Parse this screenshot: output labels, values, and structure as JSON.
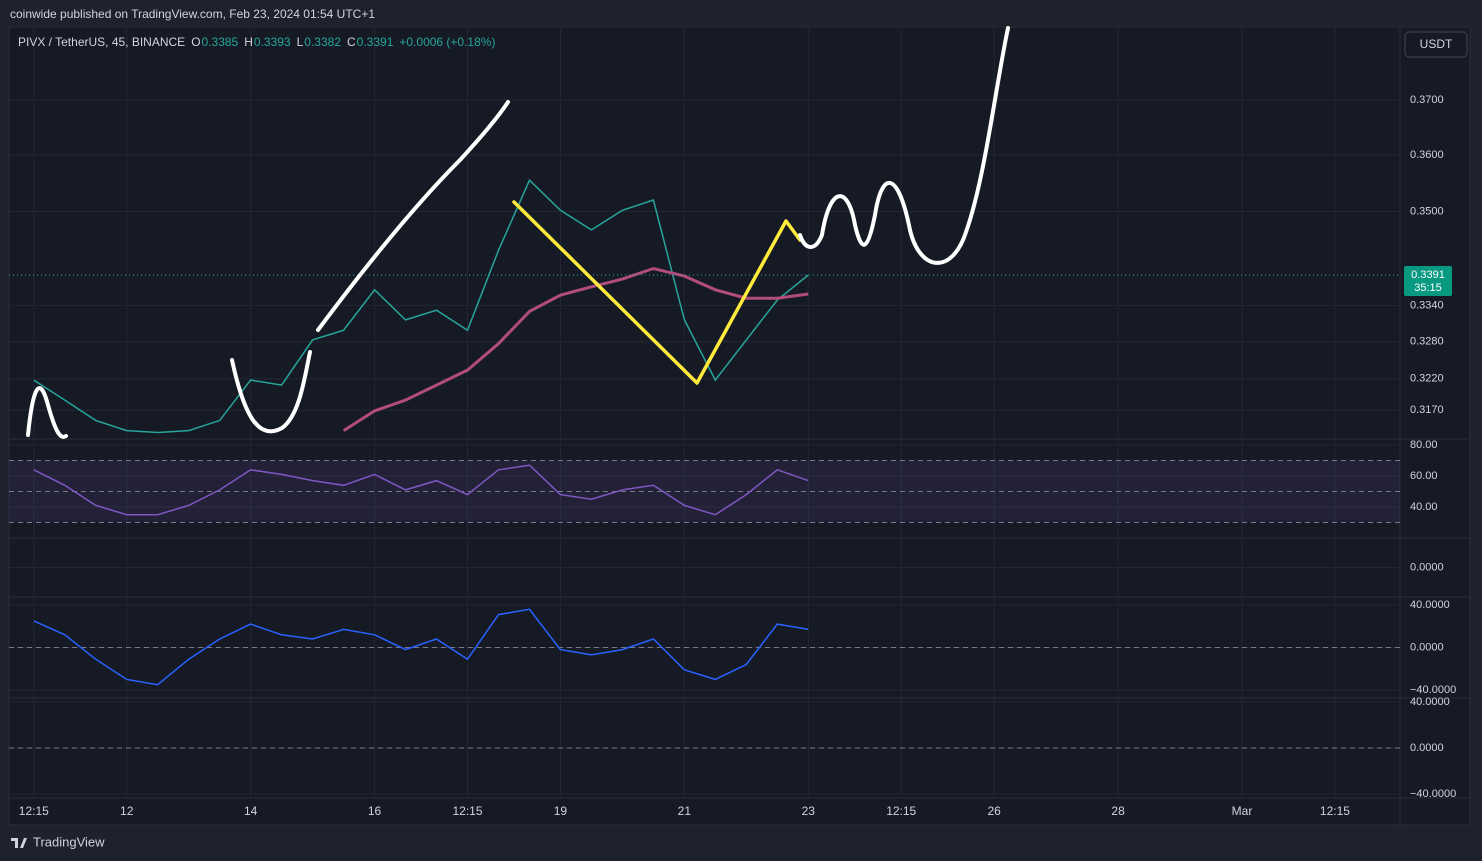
{
  "header": "coinwide published on TradingView.com, Feb 23, 2024 01:54 UTC+1",
  "footer": "TradingView",
  "chart_data": {
    "type": "line",
    "symbol": "PIVX / TetherUS, 45, BINANCE",
    "ohlc": [
      {
        "key": "O",
        "value": 0.3385
      },
      {
        "key": "H",
        "value": 0.3393
      },
      {
        "key": "L",
        "value": 0.3382
      },
      {
        "key": "C",
        "value": 0.3391
      }
    ],
    "change": "+0.0006 (+0.18%)",
    "currency": "USDT",
    "last_price": 0.3391,
    "countdown": "35:15",
    "log": true,
    "grid": true,
    "x": [
      10.5,
      11,
      11.5,
      12,
      12.5,
      13,
      13.5,
      14,
      14.5,
      15,
      15.5,
      16,
      16.5,
      17,
      17.5,
      18,
      18.5,
      19,
      19.5,
      20,
      20.5,
      21,
      21.5,
      22,
      22.5,
      23
    ],
    "xlim": [
      10.1,
      32.55
    ],
    "xticks": [
      {
        "value": 10.5,
        "label": "12:15"
      },
      {
        "value": 12,
        "label": "12"
      },
      {
        "value": 14,
        "label": "14"
      },
      {
        "value": 16,
        "label": "16"
      },
      {
        "value": 17.5,
        "label": "12:15"
      },
      {
        "value": 19,
        "label": "19"
      },
      {
        "value": 21,
        "label": "21"
      },
      {
        "value": 23,
        "label": "23"
      },
      {
        "value": 24.5,
        "label": "12:15"
      },
      {
        "value": 26,
        "label": "26"
      },
      {
        "value": 28,
        "label": "28"
      },
      {
        "value": 30,
        "label": "Mar"
      },
      {
        "value": 31.5,
        "label": "12:15"
      }
    ],
    "ylim": [
      0.3128,
      0.3835
    ],
    "yticks": [
      {
        "value": 0.317,
        "label": "0.3170"
      },
      {
        "value": 0.322,
        "label": "0.3220"
      },
      {
        "value": 0.328,
        "label": "0.3280"
      },
      {
        "value": 0.334,
        "label": "0.3340"
      },
      {
        "value": 0.35,
        "label": "0.3500"
      },
      {
        "value": 0.36,
        "label": "0.3600"
      },
      {
        "value": 0.37,
        "label": "0.3700"
      }
    ],
    "series": [
      {
        "color": "#26a69a",
        "values": [
          0.3218,
          0.3186,
          0.3154,
          0.3138,
          0.3135,
          0.3138,
          0.3154,
          0.3218,
          0.321,
          0.3283,
          0.3299,
          0.3366,
          0.3316,
          0.3332,
          0.3299,
          0.3433,
          0.3555,
          0.3502,
          0.3468,
          0.3502,
          0.352,
          0.3316,
          0.3218,
          0.3283,
          0.3349,
          0.3391
        ]
      },
      {
        "color": "#b24c7c",
        "values": [
          null,
          null,
          null,
          null,
          null,
          null,
          null,
          null,
          null,
          null,
          0.3138,
          0.3169,
          0.3186,
          0.321,
          0.3234,
          0.3277,
          0.333,
          0.3357,
          0.3371,
          0.3384,
          0.3402,
          0.3389,
          0.3366,
          0.3352,
          0.3352,
          0.3359
        ]
      }
    ],
    "indicators": [
      {
        "ylim": [
          20.6,
          82.6
        ],
        "yticks": [
          {
            "value": 40,
            "label": "40.00"
          },
          {
            "value": 60,
            "label": "60.00"
          },
          {
            "value": 80,
            "label": "80.00"
          }
        ],
        "levels": [
          30,
          50,
          70
        ],
        "series": [
          {
            "color": "#7e57c2",
            "values": [
              64,
              54,
              41,
              35,
              35,
              41,
              51,
              64,
              61,
              57,
              54,
              61,
              51,
              57,
              48,
              64,
              67,
              48,
              45,
              51,
              54,
              41,
              35,
              48,
              64,
              57
            ]
          }
        ]
      },
      {
        "ylim": [
          -0.006,
          0.006
        ],
        "yticks": [
          {
            "value": 0,
            "label": "0.0000"
          }
        ],
        "levels": [],
        "series": []
      },
      {
        "ylim": [
          -46.6,
          46.6
        ],
        "yticks": [
          {
            "value": -40,
            "label": "−40.0000"
          },
          {
            "value": 0,
            "label": "0.0000"
          },
          {
            "value": 40,
            "label": "40.0000"
          }
        ],
        "levels": [
          0
        ],
        "series": [
          {
            "color": "#2962ff",
            "values": [
              25,
              12,
              -11,
              -30,
              -35,
              -11,
              8,
              22,
              12,
              8,
              17,
              12,
              -2,
              8,
              -11,
              31,
              36,
              -2,
              -7,
              -2,
              8,
              -21,
              -30,
              -16,
              22,
              17
            ]
          }
        ]
      },
      {
        "ylim": [
          -42.6,
          42.6
        ],
        "yticks": [
          {
            "value": -40,
            "label": "−40.0000"
          },
          {
            "value": 0,
            "label": "0.0000"
          },
          {
            "value": 40,
            "label": "40.0000"
          }
        ],
        "levels": [
          0
        ],
        "series": []
      }
    ]
  }
}
